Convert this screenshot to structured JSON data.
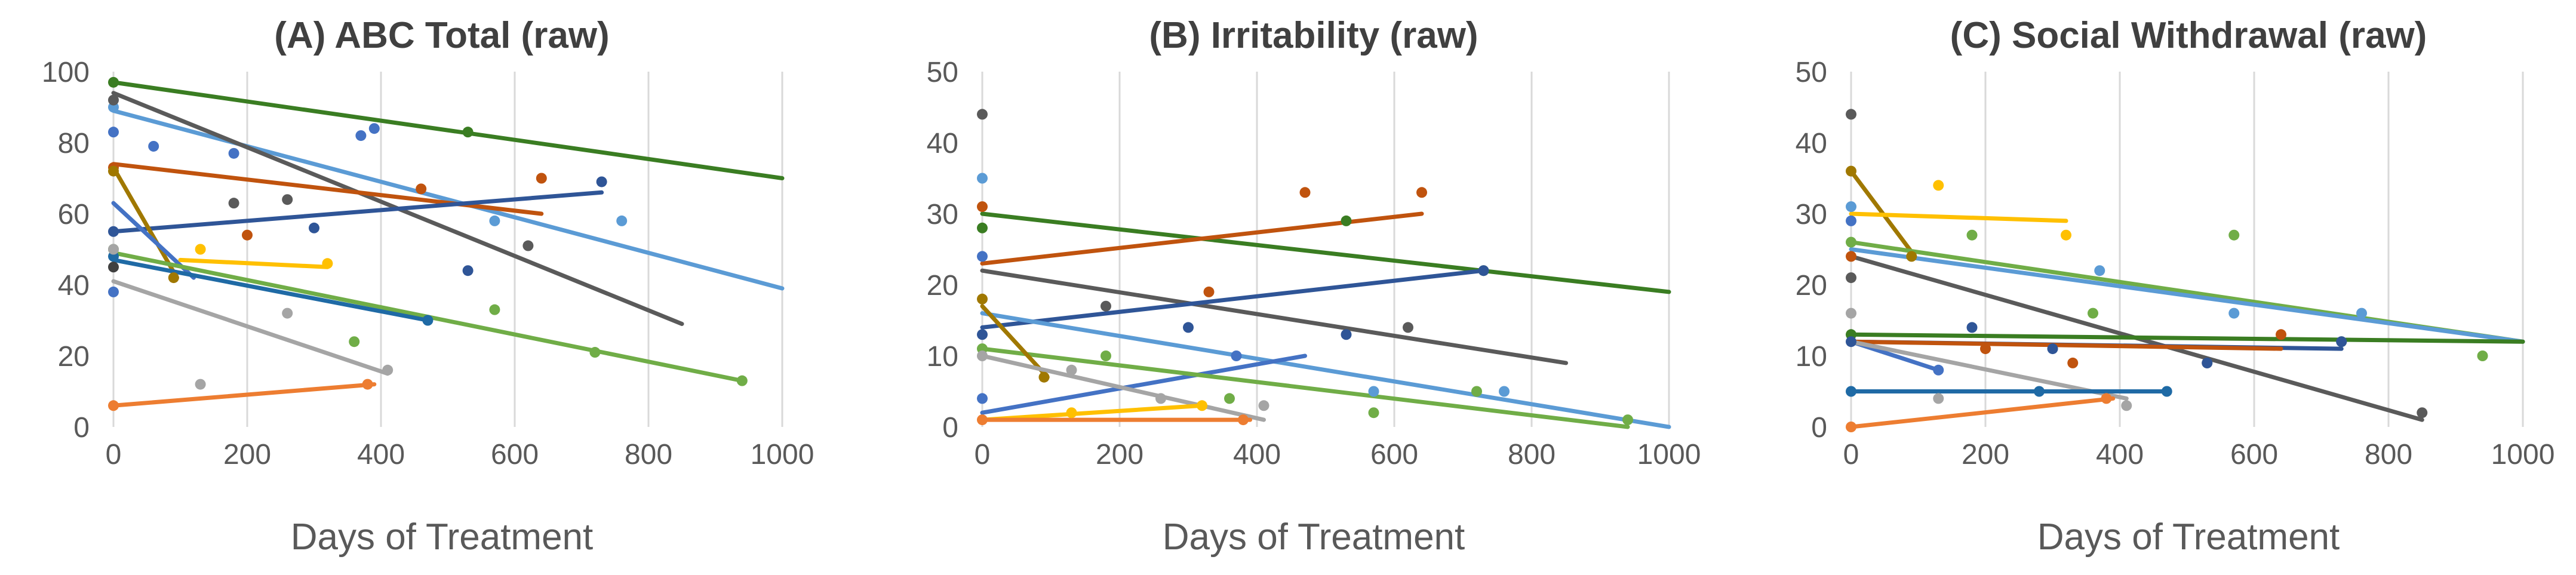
{
  "figure": {
    "panels": [
      "A",
      "B",
      "C"
    ]
  },
  "chart_data": [
    {
      "id": "A",
      "type": "scatter",
      "title": "(A) ABC Total (raw)",
      "xlabel": "Days of Treatment",
      "ylabel": "",
      "xlim": [
        0,
        1000
      ],
      "ylim": [
        0,
        100
      ],
      "xticks": [
        0,
        200,
        400,
        600,
        800,
        1000
      ],
      "yticks": [
        0,
        20,
        40,
        60,
        80,
        100
      ],
      "grid": "vertical",
      "series": [
        {
          "name": "dark-green",
          "color": "#3a7d22",
          "points": [
            [
              0,
              97
            ],
            [
              530,
              83
            ]
          ],
          "trend": [
            [
              0,
              97
            ],
            [
              1000,
              70
            ]
          ]
        },
        {
          "name": "light-blue",
          "color": "#5b9bd5",
          "points": [
            [
              0,
              90
            ],
            [
              570,
              58
            ],
            [
              760,
              58
            ]
          ],
          "trend": [
            [
              0,
              89
            ],
            [
              1000,
              39
            ]
          ]
        },
        {
          "name": "gray",
          "color": "#5a5a5a",
          "points": [
            [
              0,
              92
            ],
            [
              180,
              63
            ],
            [
              260,
              64
            ],
            [
              620,
              51
            ]
          ],
          "trend": [
            [
              0,
              94
            ],
            [
              850,
              29
            ]
          ]
        },
        {
          "name": "brown",
          "color": "#c0530e",
          "points": [
            [
              0,
              73
            ],
            [
              200,
              54
            ],
            [
              460,
              67
            ],
            [
              640,
              70
            ]
          ],
          "trend": [
            [
              0,
              74
            ],
            [
              640,
              60
            ]
          ]
        },
        {
          "name": "navy",
          "color": "#2f5597",
          "points": [
            [
              0,
              55
            ],
            [
              300,
              56
            ],
            [
              530,
              44
            ],
            [
              730,
              69
            ]
          ],
          "trend": [
            [
              0,
              55
            ],
            [
              730,
              66
            ]
          ]
        },
        {
          "name": "gold-brown",
          "color": "#a07800",
          "points": [
            [
              0,
              72
            ],
            [
              90,
              42
            ]
          ],
          "trend": [
            [
              0,
              73
            ],
            [
              95,
              42
            ]
          ]
        },
        {
          "name": "blue",
          "color": "#4472c4",
          "points": [
            [
              0,
              83
            ],
            [
              60,
              79
            ],
            [
              180,
              77
            ],
            [
              370,
              82
            ],
            [
              390,
              84
            ],
            [
              0,
              38
            ]
          ],
          "trend": [
            [
              0,
              63
            ],
            [
              120,
              42
            ]
          ]
        },
        {
          "name": "green",
          "color": "#70ad47",
          "points": [
            [
              0,
              50
            ],
            [
              360,
              24
            ],
            [
              570,
              33
            ],
            [
              720,
              21
            ],
            [
              940,
              13
            ]
          ],
          "trend": [
            [
              0,
              49
            ],
            [
              940,
              13
            ]
          ]
        },
        {
          "name": "teal",
          "color": "#1f6aa5",
          "points": [
            [
              0,
              48
            ],
            [
              470,
              30
            ]
          ],
          "trend": [
            [
              0,
              47
            ],
            [
              470,
              30
            ]
          ]
        },
        {
          "name": "yellow",
          "color": "#ffc000",
          "points": [
            [
              130,
              50
            ],
            [
              320,
              46
            ]
          ],
          "trend": [
            [
              100,
              47
            ],
            [
              320,
              45
            ]
          ]
        },
        {
          "name": "silver",
          "color": "#a5a5a5",
          "points": [
            [
              0,
              50
            ],
            [
              130,
              12
            ],
            [
              260,
              32
            ],
            [
              410,
              16
            ]
          ],
          "trend": [
            [
              0,
              41
            ],
            [
              410,
              15
            ]
          ]
        },
        {
          "name": "orange",
          "color": "#ed7d31",
          "points": [
            [
              0,
              6
            ],
            [
              380,
              12
            ]
          ],
          "trend": [
            [
              0,
              6
            ],
            [
              390,
              12
            ]
          ]
        },
        {
          "name": "dark",
          "color": "#404040",
          "points": [
            [
              0,
              45
            ]
          ],
          "trend": []
        }
      ]
    },
    {
      "id": "B",
      "type": "scatter",
      "title": "(B) Irritability  (raw)",
      "xlabel": "Days of Treatment",
      "ylabel": "",
      "xlim": [
        0,
        1000
      ],
      "ylim": [
        0,
        50
      ],
      "xticks": [
        0,
        200,
        400,
        600,
        800,
        1000
      ],
      "yticks": [
        0,
        10,
        20,
        30,
        40,
        50
      ],
      "grid": "vertical",
      "series": [
        {
          "name": "dark-green",
          "color": "#3a7d22",
          "points": [
            [
              0,
              28
            ],
            [
              530,
              29
            ],
            [
              730,
              22
            ]
          ],
          "trend": [
            [
              0,
              30
            ],
            [
              1000,
              19
            ]
          ]
        },
        {
          "name": "brown",
          "color": "#c0530e",
          "points": [
            [
              0,
              31
            ],
            [
              330,
              19
            ],
            [
              470,
              33
            ],
            [
              640,
              33
            ]
          ],
          "trend": [
            [
              0,
              23
            ],
            [
              640,
              30
            ]
          ]
        },
        {
          "name": "gray",
          "color": "#5a5a5a",
          "points": [
            [
              0,
              44
            ],
            [
              180,
              17
            ],
            [
              620,
              14
            ]
          ],
          "trend": [
            [
              0,
              22
            ],
            [
              850,
              9
            ]
          ]
        },
        {
          "name": "navy",
          "color": "#2f5597",
          "points": [
            [
              0,
              13
            ],
            [
              300,
              14
            ],
            [
              530,
              13
            ],
            [
              730,
              22
            ]
          ],
          "trend": [
            [
              0,
              14
            ],
            [
              730,
              22
            ]
          ]
        },
        {
          "name": "light-blue",
          "color": "#5b9bd5",
          "points": [
            [
              0,
              35
            ],
            [
              570,
              5
            ],
            [
              760,
              5
            ]
          ],
          "trend": [
            [
              0,
              16
            ],
            [
              1000,
              0
            ]
          ]
        },
        {
          "name": "blue",
          "color": "#4472c4",
          "points": [
            [
              0,
              24
            ],
            [
              0,
              4
            ],
            [
              370,
              10
            ]
          ],
          "trend": [
            [
              0,
              2
            ],
            [
              470,
              10
            ]
          ]
        },
        {
          "name": "green",
          "color": "#70ad47",
          "points": [
            [
              0,
              11
            ],
            [
              180,
              10
            ],
            [
              360,
              4
            ],
            [
              570,
              2
            ],
            [
              720,
              5
            ],
            [
              940,
              1
            ]
          ],
          "trend": [
            [
              0,
              11
            ],
            [
              940,
              0
            ]
          ]
        },
        {
          "name": "gold-brown",
          "color": "#a07800",
          "points": [
            [
              0,
              18
            ],
            [
              90,
              7
            ]
          ],
          "trend": [
            [
              0,
              17
            ],
            [
              95,
              7
            ]
          ]
        },
        {
          "name": "silver",
          "color": "#a5a5a5",
          "points": [
            [
              0,
              10
            ],
            [
              130,
              8
            ],
            [
              260,
              4
            ],
            [
              410,
              3
            ]
          ],
          "trend": [
            [
              0,
              10
            ],
            [
              410,
              1
            ]
          ]
        },
        {
          "name": "yellow",
          "color": "#ffc000",
          "points": [
            [
              130,
              2
            ],
            [
              320,
              3
            ]
          ],
          "trend": [
            [
              0,
              1
            ],
            [
              320,
              3
            ]
          ]
        },
        {
          "name": "orange",
          "color": "#ed7d31",
          "points": [
            [
              0,
              1
            ],
            [
              380,
              1
            ]
          ],
          "trend": [
            [
              0,
              1
            ],
            [
              390,
              1
            ]
          ]
        }
      ]
    },
    {
      "id": "C",
      "type": "scatter",
      "title": "(C) Social Withdrawal (raw)",
      "xlabel": "Days of Treatment",
      "ylabel": "",
      "xlim": [
        0,
        1000
      ],
      "ylim": [
        0,
        50
      ],
      "xticks": [
        0,
        200,
        400,
        600,
        800,
        1000
      ],
      "yticks": [
        0,
        10,
        20,
        30,
        40,
        50
      ],
      "grid": "vertical",
      "series": [
        {
          "name": "gold-brown",
          "color": "#a07800",
          "points": [
            [
              0,
              36
            ],
            [
              90,
              24
            ]
          ],
          "trend": [
            [
              0,
              36
            ],
            [
              95,
              24
            ]
          ]
        },
        {
          "name": "yellow",
          "color": "#ffc000",
          "points": [
            [
              130,
              34
            ],
            [
              320,
              27
            ]
          ],
          "trend": [
            [
              0,
              30
            ],
            [
              320,
              29
            ]
          ]
        },
        {
          "name": "green",
          "color": "#70ad47",
          "points": [
            [
              0,
              26
            ],
            [
              180,
              27
            ],
            [
              360,
              16
            ],
            [
              570,
              27
            ],
            [
              940,
              10
            ]
          ],
          "trend": [
            [
              0,
              26
            ],
            [
              1000,
              12
            ]
          ]
        },
        {
          "name": "light-blue",
          "color": "#5b9bd5",
          "points": [
            [
              0,
              31
            ],
            [
              370,
              22
            ],
            [
              570,
              16
            ],
            [
              760,
              16
            ]
          ],
          "trend": [
            [
              0,
              25
            ],
            [
              1000,
              12
            ]
          ]
        },
        {
          "name": "gray",
          "color": "#5a5a5a",
          "points": [
            [
              0,
              44
            ],
            [
              0,
              21
            ],
            [
              530,
              9
            ],
            [
              850,
              2
            ]
          ],
          "trend": [
            [
              0,
              24
            ],
            [
              850,
              1
            ]
          ]
        },
        {
          "name": "blue",
          "color": "#4472c4",
          "points": [
            [
              0,
              29
            ],
            [
              130,
              8
            ]
          ],
          "trend": [
            [
              0,
              12
            ],
            [
              130,
              8
            ]
          ]
        },
        {
          "name": "dark-green",
          "color": "#3a7d22",
          "points": [
            [
              0,
              13
            ],
            [
              730,
              12
            ]
          ],
          "trend": [
            [
              0,
              13
            ],
            [
              1000,
              12
            ]
          ]
        },
        {
          "name": "navy",
          "color": "#2f5597",
          "points": [
            [
              0,
              12
            ],
            [
              180,
              14
            ],
            [
              300,
              11
            ],
            [
              530,
              9
            ],
            [
              730,
              12
            ]
          ],
          "trend": [
            [
              0,
              12
            ],
            [
              730,
              11
            ]
          ]
        },
        {
          "name": "brown",
          "color": "#c0530e",
          "points": [
            [
              0,
              24
            ],
            [
              200,
              11
            ],
            [
              330,
              9
            ],
            [
              640,
              13
            ]
          ],
          "trend": [
            [
              0,
              12
            ],
            [
              640,
              11
            ]
          ]
        },
        {
          "name": "silver",
          "color": "#a5a5a5",
          "points": [
            [
              0,
              16
            ],
            [
              130,
              4
            ],
            [
              410,
              3
            ]
          ],
          "trend": [
            [
              0,
              12
            ],
            [
              410,
              4
            ]
          ]
        },
        {
          "name": "teal",
          "color": "#1f6aa5",
          "points": [
            [
              0,
              5
            ],
            [
              280,
              5
            ],
            [
              470,
              5
            ]
          ],
          "trend": [
            [
              0,
              5
            ],
            [
              470,
              5
            ]
          ]
        },
        {
          "name": "orange",
          "color": "#ed7d31",
          "points": [
            [
              0,
              0
            ],
            [
              380,
              4
            ]
          ],
          "trend": [
            [
              0,
              0
            ],
            [
              390,
              4
            ]
          ]
        }
      ]
    }
  ]
}
